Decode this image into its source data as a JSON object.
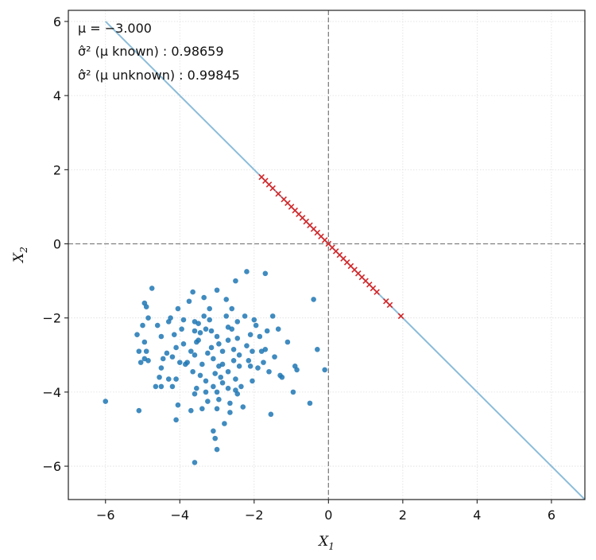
{
  "chart_data": {
    "type": "scatter",
    "xlabel": "X",
    "xlabel_sub": "1",
    "ylabel": "X",
    "ylabel_sub": "2",
    "xlim": [
      -7.0,
      6.9
    ],
    "ylim": [
      -6.9,
      6.3
    ],
    "xticks": [
      -6,
      -4,
      -2,
      0,
      2,
      4,
      6
    ],
    "yticks": [
      -6,
      -4,
      -2,
      0,
      2,
      4,
      6
    ],
    "grid": true,
    "reference_lines": {
      "x": 0,
      "y": 0,
      "style": "dashed"
    },
    "annotations": [
      "μ = −3.000",
      "σ̂² (μ known) :  0.98659",
      "σ̂² (μ unknown) :  0.99845"
    ],
    "line": {
      "slope": -1,
      "intercept": 0,
      "color": "#8bbcd9"
    },
    "colors": {
      "scatter": "#1f77b4",
      "projection": "#d62728",
      "line": "#8bbcd9",
      "refline": "#808080",
      "grid": "#dddddd"
    },
    "series": [
      {
        "marker": "dot",
        "points": [
          [
            -6.0,
            -4.25
          ],
          [
            -5.1,
            -4.5
          ],
          [
            -4.75,
            -1.2
          ],
          [
            -4.95,
            -1.6
          ],
          [
            -4.9,
            -1.7
          ],
          [
            -4.85,
            -2.0
          ],
          [
            -5.0,
            -2.2
          ],
          [
            -5.15,
            -2.45
          ],
          [
            -4.95,
            -2.65
          ],
          [
            -5.1,
            -2.9
          ],
          [
            -4.95,
            -3.1
          ],
          [
            -4.85,
            -3.15
          ],
          [
            -5.05,
            -3.2
          ],
          [
            -4.9,
            -2.9
          ],
          [
            -4.65,
            -3.85
          ],
          [
            -4.5,
            -3.85
          ],
          [
            -4.6,
            -2.2
          ],
          [
            -4.5,
            -2.5
          ],
          [
            -4.45,
            -3.1
          ],
          [
            -4.5,
            -3.35
          ],
          [
            -4.35,
            -2.95
          ],
          [
            -4.3,
            -2.1
          ],
          [
            -4.25,
            -2.0
          ],
          [
            -4.15,
            -2.45
          ],
          [
            -4.1,
            -2.8
          ],
          [
            -4.2,
            -3.05
          ],
          [
            -4.3,
            -3.65
          ],
          [
            -4.1,
            -3.65
          ],
          [
            -4.2,
            -3.85
          ],
          [
            -4.05,
            -4.35
          ],
          [
            -4.1,
            -4.75
          ],
          [
            -4.05,
            -1.75
          ],
          [
            -4.0,
            -3.2
          ],
          [
            -3.9,
            -2.7
          ],
          [
            -3.85,
            -3.25
          ],
          [
            -3.8,
            -3.2
          ],
          [
            -3.75,
            -1.55
          ],
          [
            -3.7,
            -2.9
          ],
          [
            -3.65,
            -1.3
          ],
          [
            -3.6,
            -2.1
          ],
          [
            -3.6,
            -2.35
          ],
          [
            -3.55,
            -2.65
          ],
          [
            -3.6,
            -3.0
          ],
          [
            -3.65,
            -3.45
          ],
          [
            -3.55,
            -3.9
          ],
          [
            -3.6,
            -4.05
          ],
          [
            -3.7,
            -4.5
          ],
          [
            -3.6,
            -5.9
          ],
          [
            -3.5,
            -2.6
          ],
          [
            -3.5,
            -2.15
          ],
          [
            -3.45,
            -2.4
          ],
          [
            -3.4,
            -3.25
          ],
          [
            -3.45,
            -3.55
          ],
          [
            -3.4,
            -4.45
          ],
          [
            -3.35,
            -1.45
          ],
          [
            -3.35,
            -1.95
          ],
          [
            -3.3,
            -2.3
          ],
          [
            -3.25,
            -2.95
          ],
          [
            -3.3,
            -3.7
          ],
          [
            -3.25,
            -4.25
          ],
          [
            -3.2,
            -1.75
          ],
          [
            -3.2,
            -2.05
          ],
          [
            -3.15,
            -2.35
          ],
          [
            -3.15,
            -2.8
          ],
          [
            -3.1,
            -3.1
          ],
          [
            -3.05,
            -3.5
          ],
          [
            -3.1,
            -3.85
          ],
          [
            -3.0,
            -4.0
          ],
          [
            -3.1,
            -5.05
          ],
          [
            -3.05,
            -5.25
          ],
          [
            -3.0,
            -1.25
          ],
          [
            -3.0,
            -2.5
          ],
          [
            -2.95,
            -2.7
          ],
          [
            -2.95,
            -3.3
          ],
          [
            -2.9,
            -3.6
          ],
          [
            -2.95,
            -4.2
          ],
          [
            -3.0,
            -4.45
          ],
          [
            -3.0,
            -5.55
          ],
          [
            -2.85,
            -2.9
          ],
          [
            -2.85,
            -3.75
          ],
          [
            -2.8,
            -4.85
          ],
          [
            -2.75,
            -1.5
          ],
          [
            -2.75,
            -1.95
          ],
          [
            -2.7,
            -2.25
          ],
          [
            -2.7,
            -2.6
          ],
          [
            -2.7,
            -3.45
          ],
          [
            -2.7,
            -3.9
          ],
          [
            -2.65,
            -4.3
          ],
          [
            -2.65,
            -4.55
          ],
          [
            -2.6,
            -1.75
          ],
          [
            -2.6,
            -2.3
          ],
          [
            -2.55,
            -2.85
          ],
          [
            -2.55,
            -3.15
          ],
          [
            -2.5,
            -3.65
          ],
          [
            -2.5,
            -3.95
          ],
          [
            -2.45,
            -4.05
          ],
          [
            -2.5,
            -1.0
          ],
          [
            -2.45,
            -2.1
          ],
          [
            -2.4,
            -3.0
          ],
          [
            -2.4,
            -3.3
          ],
          [
            -2.35,
            -3.85
          ],
          [
            -2.3,
            -4.4
          ],
          [
            -2.25,
            -1.95
          ],
          [
            -2.2,
            -0.75
          ],
          [
            -2.2,
            -2.75
          ],
          [
            -2.15,
            -3.15
          ],
          [
            -2.1,
            -2.45
          ],
          [
            -2.05,
            -2.9
          ],
          [
            -2.05,
            -3.7
          ],
          [
            -2.0,
            -2.05
          ],
          [
            -1.95,
            -2.2
          ],
          [
            -1.9,
            -3.35
          ],
          [
            -1.85,
            -2.5
          ],
          [
            -1.8,
            -2.9
          ],
          [
            -1.75,
            -3.2
          ],
          [
            -1.7,
            -0.8
          ],
          [
            -1.7,
            -2.85
          ],
          [
            -1.65,
            -2.35
          ],
          [
            -1.6,
            -3.45
          ],
          [
            -1.55,
            -4.6
          ],
          [
            -1.5,
            -1.95
          ],
          [
            -1.45,
            -3.05
          ],
          [
            -1.35,
            -2.3
          ],
          [
            -1.3,
            -3.55
          ],
          [
            -1.25,
            -3.6
          ],
          [
            -1.1,
            -2.65
          ],
          [
            -0.95,
            -4.0
          ],
          [
            -0.9,
            -3.3
          ],
          [
            -0.85,
            -3.4
          ],
          [
            -0.5,
            -4.3
          ],
          [
            -0.4,
            -1.5
          ],
          [
            -0.3,
            -2.85
          ],
          [
            -0.1,
            -3.4
          ],
          [
            -2.1,
            -3.3
          ],
          [
            -3.9,
            -2.05
          ],
          [
            -4.55,
            -3.6
          ],
          [
            -3.3,
            -4.0
          ],
          [
            -2.85,
            -3.25
          ],
          [
            -3.95,
            -2.3
          ],
          [
            -2.45,
            -2.55
          ]
        ]
      },
      {
        "marker": "x",
        "points": [
          [
            -1.8,
            1.8
          ],
          [
            -1.7,
            1.7
          ],
          [
            -1.6,
            1.6
          ],
          [
            -1.5,
            1.5
          ],
          [
            -1.35,
            1.35
          ],
          [
            -1.2,
            1.2
          ],
          [
            -1.1,
            1.1
          ],
          [
            -1.0,
            1.0
          ],
          [
            -0.9,
            0.9
          ],
          [
            -0.8,
            0.8
          ],
          [
            -0.7,
            0.7
          ],
          [
            -0.6,
            0.6
          ],
          [
            -0.5,
            0.5
          ],
          [
            -0.4,
            0.4
          ],
          [
            -0.3,
            0.3
          ],
          [
            -0.2,
            0.2
          ],
          [
            -0.1,
            0.1
          ],
          [
            0.0,
            0.0
          ],
          [
            0.1,
            -0.1
          ],
          [
            0.2,
            -0.2
          ],
          [
            0.3,
            -0.3
          ],
          [
            0.4,
            -0.4
          ],
          [
            0.5,
            -0.5
          ],
          [
            0.6,
            -0.6
          ],
          [
            0.7,
            -0.7
          ],
          [
            0.8,
            -0.8
          ],
          [
            0.9,
            -0.9
          ],
          [
            1.0,
            -1.0
          ],
          [
            1.1,
            -1.1
          ],
          [
            1.2,
            -1.2
          ],
          [
            1.3,
            -1.3
          ],
          [
            1.55,
            -1.55
          ],
          [
            1.65,
            -1.65
          ],
          [
            1.95,
            -1.95
          ]
        ]
      }
    ]
  }
}
